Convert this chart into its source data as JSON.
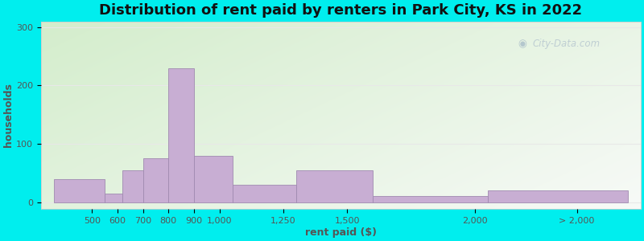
{
  "title": "Distribution of rent paid by renters in Park City, KS in 2022",
  "xlabel": "rent paid ($)",
  "ylabel": "households",
  "tick_labels": [
    "500",
    "600",
    "700",
    "800",
    "900",
    "1,000",
    "1,250",
    "1,500",
    "2,000",
    "> 2,000"
  ],
  "tick_positions": [
    500,
    600,
    700,
    800,
    900,
    1000,
    1250,
    1500,
    2000,
    2400
  ],
  "bar_lefts": [
    350,
    550,
    620,
    700,
    800,
    900,
    1050,
    1300,
    1600,
    2050
  ],
  "bar_rights": [
    550,
    620,
    700,
    800,
    900,
    1050,
    1300,
    1600,
    2050,
    2600
  ],
  "bar_values": [
    40,
    15,
    55,
    75,
    230,
    80,
    30,
    55,
    10,
    20
  ],
  "bar_color": "#c8aed3",
  "bar_edge_color": "#a08ab0",
  "background_color_outer": "#00eeee",
  "yticks": [
    0,
    100,
    200,
    300
  ],
  "ylim": [
    -12,
    310
  ],
  "xlim": [
    300,
    2650
  ],
  "title_fontsize": 13,
  "axis_label_fontsize": 9,
  "tick_fontsize": 8,
  "watermark_text": "City-Data.com",
  "watermark_color": "#b8c8d0",
  "grid_color": "#e8e8e8",
  "spine_color": "#cccccc"
}
